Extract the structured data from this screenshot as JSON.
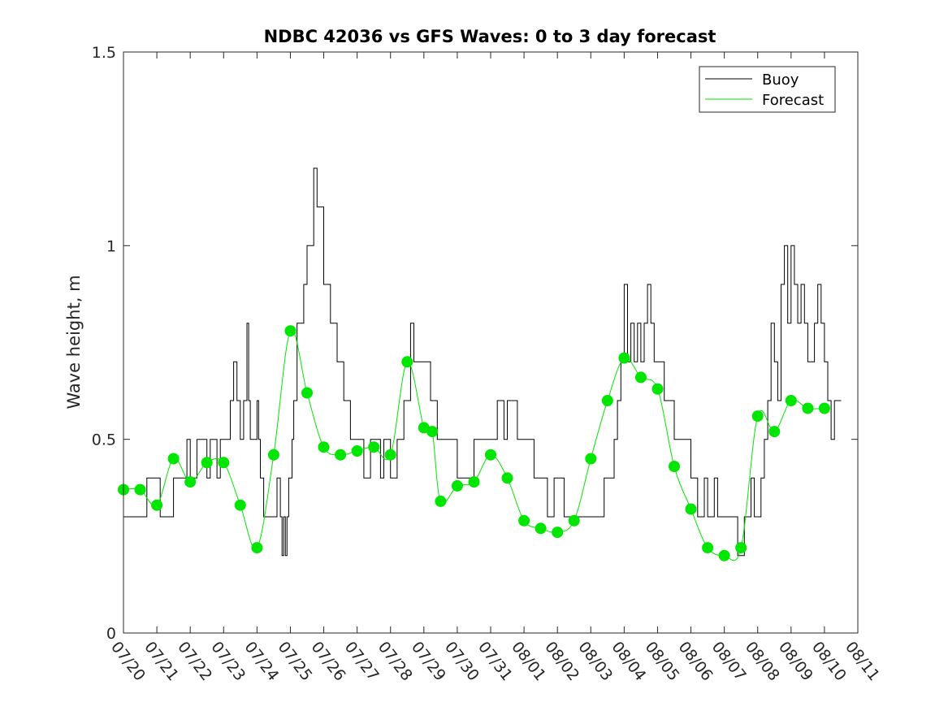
{
  "chart_data": {
    "type": "line",
    "title": "NDBC 42036 vs GFS Waves: 0 to 3 day forecast",
    "xlabel": "",
    "ylabel": "Wave height, m",
    "ylim": [
      0,
      1.5
    ],
    "yticks": [
      "0",
      "0.5",
      "1",
      "1.5"
    ],
    "xlim": [
      0,
      22
    ],
    "xticks": [
      "07/20",
      "07/21",
      "07/22",
      "07/23",
      "07/24",
      "07/25",
      "07/26",
      "07/27",
      "07/28",
      "07/29",
      "07/30",
      "07/31",
      "08/01",
      "08/02",
      "08/03",
      "08/04",
      "08/05",
      "08/06",
      "08/07",
      "08/08",
      "08/09",
      "08/10",
      "08/11"
    ],
    "legend": {
      "position": "top-right",
      "entries": [
        "Buoy",
        "Forecast"
      ]
    },
    "colors": {
      "buoy": "#000000",
      "forecast": "#00e600",
      "axis": "#262626",
      "background": "#ffffff"
    },
    "series": [
      {
        "name": "Buoy",
        "x": [
          0,
          0.6,
          0.7,
          1.0,
          1.1,
          1.4,
          1.5,
          1.6,
          1.9,
          2.0,
          2.2,
          2.5,
          2.6,
          2.7,
          2.8,
          2.9,
          3.0,
          3.2,
          3.3,
          3.4,
          3.5,
          3.6,
          3.7,
          3.75,
          3.8,
          3.9,
          4.0,
          4.05,
          4.1,
          4.2,
          4.3,
          4.5,
          4.6,
          4.7,
          4.75,
          4.8,
          4.85,
          4.9,
          4.95,
          5.0,
          5.05,
          5.1,
          5.2,
          5.4,
          5.5,
          5.7,
          5.8,
          6.0,
          6.2,
          6.4,
          6.5,
          6.6,
          6.7,
          6.8,
          6.9,
          7.0,
          7.2,
          7.4,
          7.6,
          7.7,
          7.8,
          7.9,
          8.0,
          8.2,
          8.4,
          8.5,
          8.6,
          8.7,
          8.8,
          9.0,
          9.2,
          9.4,
          9.5,
          9.6,
          9.8,
          10.0,
          10.2,
          10.4,
          10.5,
          10.6,
          10.8,
          11.0,
          11.1,
          11.2,
          11.3,
          11.4,
          11.5,
          11.6,
          11.8,
          12.0,
          12.2,
          12.3,
          12.5,
          12.7,
          12.9,
          13.0,
          13.2,
          13.4,
          13.6,
          13.8,
          14.0,
          14.2,
          14.4,
          14.5,
          14.6,
          14.7,
          14.8,
          14.9,
          15.0,
          15.1,
          15.2,
          15.3,
          15.4,
          15.5,
          15.6,
          15.7,
          15.8,
          15.9,
          16.0,
          16.1,
          16.2,
          16.3,
          16.4,
          16.5,
          16.6,
          16.8,
          17.0,
          17.2,
          17.3,
          17.4,
          17.5,
          17.6,
          17.7,
          17.8,
          17.9,
          18.0,
          18.2,
          18.4,
          18.5,
          18.6,
          18.8,
          18.9,
          19.0,
          19.1,
          19.2,
          19.3,
          19.4,
          19.5,
          19.6,
          19.7,
          19.8,
          19.9,
          20.0,
          20.1,
          20.2,
          20.3,
          20.4,
          20.5,
          20.6,
          20.7,
          20.8,
          20.9,
          21.0,
          21.1,
          21.2,
          21.3,
          21.4
        ],
        "values": [
          0.3,
          0.3,
          0.4,
          0.4,
          0.3,
          0.3,
          0.4,
          0.4,
          0.5,
          0.4,
          0.5,
          0.4,
          0.5,
          0.5,
          0.4,
          0.5,
          0.5,
          0.6,
          0.7,
          0.6,
          0.5,
          0.6,
          0.8,
          0.6,
          0.5,
          0.5,
          0.6,
          0.5,
          0.4,
          0.3,
          0.3,
          0.3,
          0.4,
          0.3,
          0.2,
          0.3,
          0.2,
          0.3,
          0.4,
          0.4,
          0.5,
          0.6,
          0.8,
          0.9,
          1.0,
          1.2,
          1.1,
          0.9,
          0.8,
          0.7,
          0.7,
          0.6,
          0.6,
          0.5,
          0.5,
          0.5,
          0.4,
          0.5,
          0.5,
          0.4,
          0.5,
          0.5,
          0.4,
          0.5,
          0.6,
          0.6,
          0.8,
          0.7,
          0.7,
          0.7,
          0.6,
          0.5,
          0.5,
          0.5,
          0.5,
          0.4,
          0.4,
          0.4,
          0.5,
          0.5,
          0.5,
          0.5,
          0.5,
          0.6,
          0.6,
          0.5,
          0.6,
          0.6,
          0.5,
          0.5,
          0.5,
          0.4,
          0.4,
          0.3,
          0.4,
          0.4,
          0.3,
          0.3,
          0.3,
          0.3,
          0.3,
          0.3,
          0.4,
          0.4,
          0.4,
          0.5,
          0.6,
          0.7,
          0.9,
          0.7,
          0.8,
          0.7,
          0.8,
          0.7,
          0.8,
          0.9,
          0.8,
          0.7,
          0.7,
          0.7,
          0.6,
          0.6,
          0.6,
          0.5,
          0.5,
          0.5,
          0.4,
          0.3,
          0.3,
          0.4,
          0.3,
          0.3,
          0.4,
          0.3,
          0.3,
          0.3,
          0.3,
          0.2,
          0.2,
          0.3,
          0.4,
          0.3,
          0.3,
          0.4,
          0.5,
          0.6,
          0.8,
          0.7,
          0.6,
          0.9,
          1.0,
          0.8,
          1.0,
          0.9,
          0.8,
          0.9,
          0.8,
          0.7,
          0.7,
          0.8,
          0.9,
          0.8,
          0.7,
          0.6,
          0.5,
          0.6,
          0.6
        ]
      },
      {
        "name": "Forecast",
        "x": [
          0,
          0.5,
          1.0,
          1.5,
          2.0,
          2.5,
          3.0,
          3.5,
          4.0,
          4.5,
          5.0,
          5.5,
          6.0,
          6.5,
          7.0,
          7.5,
          8.0,
          8.5,
          9.0,
          9.25,
          9.5,
          10.0,
          10.5,
          11.0,
          11.5,
          12.0,
          12.5,
          13.0,
          13.5,
          14.0,
          14.5,
          15.0,
          15.5,
          16.0,
          16.5,
          17.0,
          17.5,
          18.0,
          18.5,
          19.0,
          19.5,
          20.0,
          20.5,
          21.0
        ],
        "values": [
          0.37,
          0.37,
          0.33,
          0.45,
          0.39,
          0.44,
          0.44,
          0.33,
          0.22,
          0.46,
          0.78,
          0.62,
          0.48,
          0.46,
          0.47,
          0.48,
          0.46,
          0.7,
          0.53,
          0.52,
          0.34,
          0.38,
          0.39,
          0.46,
          0.4,
          0.29,
          0.27,
          0.26,
          0.29,
          0.45,
          0.6,
          0.71,
          0.66,
          0.63,
          0.43,
          0.32,
          0.22,
          0.2,
          0.22,
          0.56,
          0.52,
          0.6,
          0.58,
          0.58
        ]
      }
    ]
  }
}
